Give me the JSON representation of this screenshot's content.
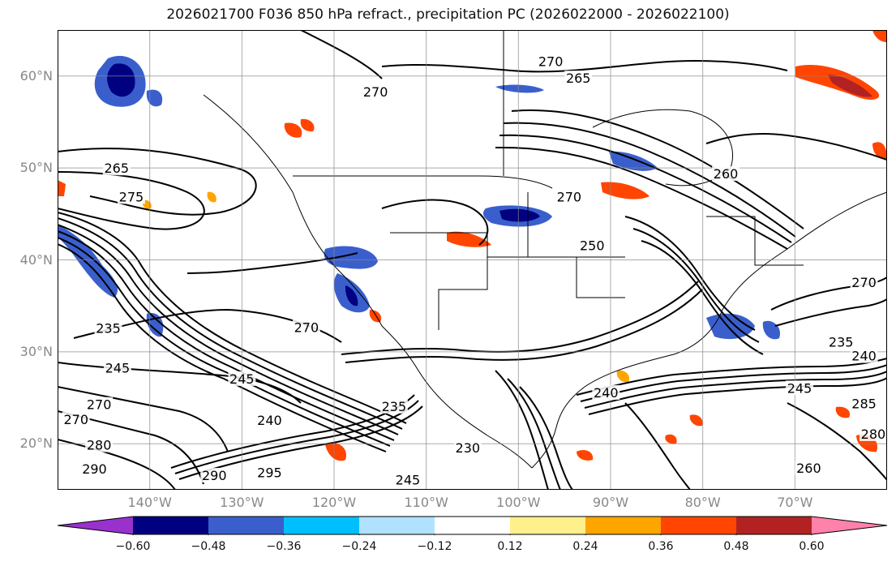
{
  "title": "2026021700 F036 850 hPa refract., precipitation PC (2026022000 - 2026022100)",
  "map": {
    "lon_range": [
      -150,
      -60
    ],
    "lat_range": [
      15,
      65
    ],
    "lat_labels": [
      "60°N",
      "50°N",
      "40°N",
      "30°N",
      "20°N"
    ],
    "lat_values": [
      60,
      50,
      40,
      30,
      20
    ],
    "lon_labels": [
      "140°W",
      "130°W",
      "120°W",
      "110°W",
      "100°W",
      "90°W",
      "80°W",
      "70°W"
    ],
    "lon_values": [
      -140,
      -130,
      -120,
      -110,
      -100,
      -90,
      -80,
      -70
    ],
    "contour_labels": [
      {
        "text": "270",
        "lon": -96.5,
        "lat": 61.5
      },
      {
        "text": "265",
        "lon": -93.5,
        "lat": 59.7
      },
      {
        "text": "270",
        "lon": -115.5,
        "lat": 58.2
      },
      {
        "text": "265",
        "lon": -143.6,
        "lat": 49.9
      },
      {
        "text": "275",
        "lon": -142.0,
        "lat": 46.8
      },
      {
        "text": "260",
        "lon": -77.5,
        "lat": 49.3
      },
      {
        "text": "270",
        "lon": -94.5,
        "lat": 46.8
      },
      {
        "text": "250",
        "lon": -92.0,
        "lat": 41.5
      },
      {
        "text": "270",
        "lon": -123.0,
        "lat": 32.6
      },
      {
        "text": "235",
        "lon": -144.5,
        "lat": 32.5
      },
      {
        "text": "245",
        "lon": -143.5,
        "lat": 28.2
      },
      {
        "text": "245",
        "lon": -130.0,
        "lat": 27.0
      },
      {
        "text": "235",
        "lon": -113.5,
        "lat": 24.0
      },
      {
        "text": "240",
        "lon": -127.0,
        "lat": 22.5
      },
      {
        "text": "270",
        "lon": -145.5,
        "lat": 24.2
      },
      {
        "text": "270",
        "lon": -148.0,
        "lat": 22.6
      },
      {
        "text": "280",
        "lon": -145.5,
        "lat": 19.8
      },
      {
        "text": "290",
        "lon": -146.0,
        "lat": 17.2
      },
      {
        "text": "290",
        "lon": -133.0,
        "lat": 16.5
      },
      {
        "text": "295",
        "lon": -127.0,
        "lat": 16.8
      },
      {
        "text": "230",
        "lon": -105.5,
        "lat": 19.5
      },
      {
        "text": "245",
        "lon": -112.0,
        "lat": 16.0
      },
      {
        "text": "240",
        "lon": -90.5,
        "lat": 25.5
      },
      {
        "text": "235",
        "lon": -65.0,
        "lat": 31.0
      },
      {
        "text": "240",
        "lon": -62.5,
        "lat": 29.5
      },
      {
        "text": "245",
        "lon": -69.5,
        "lat": 26.0
      },
      {
        "text": "285",
        "lon": -62.5,
        "lat": 24.3
      },
      {
        "text": "280",
        "lon": -61.5,
        "lat": 21.0
      },
      {
        "text": "260",
        "lon": -68.5,
        "lat": 17.3
      },
      {
        "text": "270",
        "lon": -62.5,
        "lat": 37.5
      }
    ]
  },
  "colorbar": {
    "colors": [
      "#9932cc",
      "#000080",
      "#3a5fcd",
      "#00bfff",
      "#b0e2ff",
      "#ffffff",
      "#fff08c",
      "#ffa500",
      "#ff4500",
      "#b22222",
      "#ff82ab"
    ],
    "tick_labels": [
      "−0.60",
      "−0.48",
      "−0.36",
      "−0.24",
      "−0.12",
      "0.12",
      "0.24",
      "0.36",
      "0.48",
      "0.60"
    ],
    "tick_values": [
      -0.6,
      -0.48,
      -0.36,
      -0.24,
      -0.12,
      0.12,
      0.24,
      0.36,
      0.48,
      0.6
    ]
  }
}
